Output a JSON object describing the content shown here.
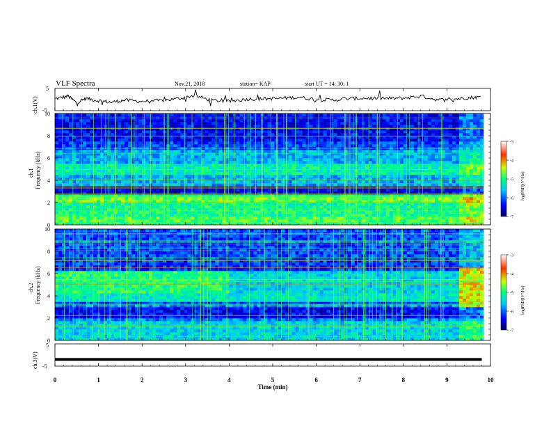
{
  "header": {
    "title": "VLF Spectra",
    "date": "Nov.21, 2018",
    "station": "station= KAP",
    "start": "start  UT =   14: 30: 1"
  },
  "chart_data": [
    {
      "type": "line",
      "panel": "ch1-waveform",
      "ylabel": "ch.1(V)",
      "ylim": [
        -5,
        5
      ],
      "yticklabels": [
        "5",
        "-5"
      ],
      "xlim": [
        0,
        10
      ],
      "x": [
        0,
        0.3,
        0.5,
        0.7,
        1.0,
        1.3,
        1.6,
        2.0,
        2.4,
        2.8,
        3.2,
        3.6,
        4.0,
        4.4,
        4.8,
        5.2,
        5.6,
        6.0,
        6.4,
        6.8,
        7.2,
        7.6,
        8.0,
        8.4,
        8.8,
        9.2,
        9.5,
        9.8
      ],
      "values": [
        0.3,
        1.5,
        -1.5,
        0.5,
        -0.5,
        -1.2,
        -0.3,
        -0.8,
        -0.5,
        0.3,
        1.8,
        -0.4,
        -0.8,
        0.2,
        0.3,
        0.6,
        1.0,
        0.0,
        -0.2,
        0.5,
        0.6,
        0.5,
        0.6,
        1.6,
        -0.2,
        0.3,
        0.8,
        1.2
      ]
    },
    {
      "type": "heatmap",
      "panel": "ch1-spectrogram",
      "ylabel": "ch.1\nFrequency (kHz)",
      "xlim": [
        0,
        10
      ],
      "ylim": [
        0,
        10
      ],
      "yticklabels": [
        "0",
        "2",
        "4",
        "6",
        "8",
        "10"
      ],
      "colorbar": {
        "label": "log(PSD)(V²/Hz)",
        "range": [
          -7,
          -3
        ],
        "ticks": [
          "-3",
          "-4",
          "-5",
          "-6",
          "-7"
        ]
      }
    },
    {
      "type": "heatmap",
      "panel": "ch2-spectrogram",
      "ylabel": "ch.2\nFrequency (kHz)",
      "xlim": [
        0,
        10
      ],
      "ylim": [
        0,
        10
      ],
      "yticklabels": [
        "0",
        "2",
        "4",
        "6",
        "8",
        "10"
      ],
      "colorbar": {
        "label": "log(PSD)(V²/Hz)",
        "range": [
          -7,
          -3
        ],
        "ticks": [
          "-3",
          "-4",
          "-5",
          "-6",
          "-7"
        ]
      }
    },
    {
      "type": "line",
      "panel": "ch3-waveform",
      "ylabel": "ch.3(V)",
      "ylim": [
        -5,
        5
      ],
      "yticklabels": [
        "5",
        "-5"
      ],
      "x": [
        0,
        9.8
      ],
      "values": [
        -2,
        -2
      ]
    }
  ],
  "xaxis": {
    "label": "Time  (min)",
    "ticks": [
      "0",
      "1",
      "2",
      "3",
      "4",
      "5",
      "6",
      "7",
      "8",
      "9",
      "10"
    ]
  }
}
